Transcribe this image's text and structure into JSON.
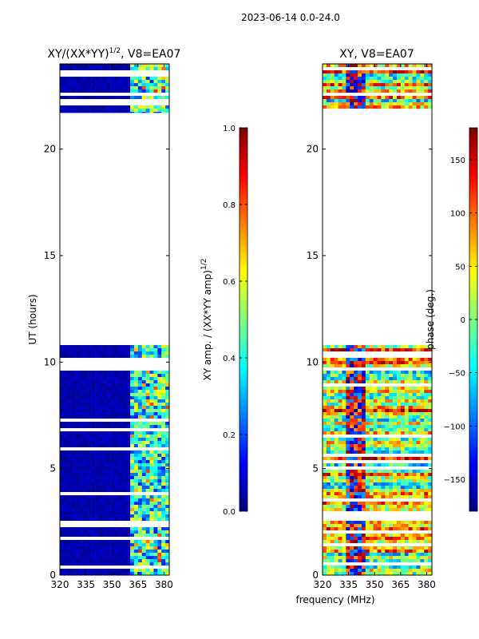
{
  "figure_title": "2023-06-14 0.0-24.0",
  "colors": {
    "jet": [
      "#00007f",
      "#0000ff",
      "#007fff",
      "#00ffff",
      "#7fff7f",
      "#ffff00",
      "#ff7f00",
      "#ff0000",
      "#7f0000"
    ],
    "frame": "#000000",
    "background": "#ffffff"
  },
  "chart_data": [
    {
      "type": "heatmap",
      "panel": "left",
      "title_prefix": "XY/(XX*YY)",
      "title_sup": "1/2",
      "title_suffix": ", V8=EA07",
      "ylabel": "UT (hours)",
      "xlabel": "",
      "xlim": [
        320,
        383
      ],
      "ylim": [
        0,
        24
      ],
      "xticks": [
        "320",
        "335",
        "350",
        "365",
        "380"
      ],
      "xtick_values": [
        320,
        335,
        350,
        365,
        380
      ],
      "yticks": [
        "0",
        "5",
        "10",
        "15",
        "20"
      ],
      "ytick_values": [
        0,
        5,
        10,
        15,
        20
      ],
      "data_time_ranges_hours": [
        [
          0,
          10.8
        ],
        [
          21.7,
          24
        ]
      ],
      "colorbar": {
        "label": "XY amp. / (XX*YY amp)",
        "label_sup": "1/2",
        "range": [
          0.0,
          1.0
        ],
        "ticks": [
          "0.0",
          "0.2",
          "0.4",
          "0.6",
          "0.8",
          "1.0"
        ],
        "tick_values": [
          0.0,
          0.2,
          0.4,
          0.6,
          0.8,
          1.0
        ]
      }
    },
    {
      "type": "heatmap",
      "panel": "right",
      "title": "XY, V8=EA07",
      "xlabel": "frequency (MHz)",
      "ylabel": "",
      "xlim": [
        320,
        383
      ],
      "ylim": [
        0,
        24
      ],
      "xticks": [
        "320",
        "335",
        "350",
        "365",
        "380"
      ],
      "xtick_values": [
        320,
        335,
        350,
        365,
        380
      ],
      "yticks": [
        "0",
        "5",
        "10",
        "15",
        "20"
      ],
      "ytick_values": [
        0,
        5,
        10,
        15,
        20
      ],
      "data_time_ranges_hours": [
        [
          0,
          10.8
        ],
        [
          21.7,
          24
        ]
      ],
      "colorbar": {
        "label": "phase (deg.)",
        "range": [
          -180,
          180
        ],
        "ticks": [
          "−150",
          "−100",
          "−50",
          "0",
          "50",
          "100",
          "150"
        ],
        "tick_values": [
          -150,
          -100,
          -50,
          0,
          50,
          100,
          150
        ]
      }
    }
  ]
}
